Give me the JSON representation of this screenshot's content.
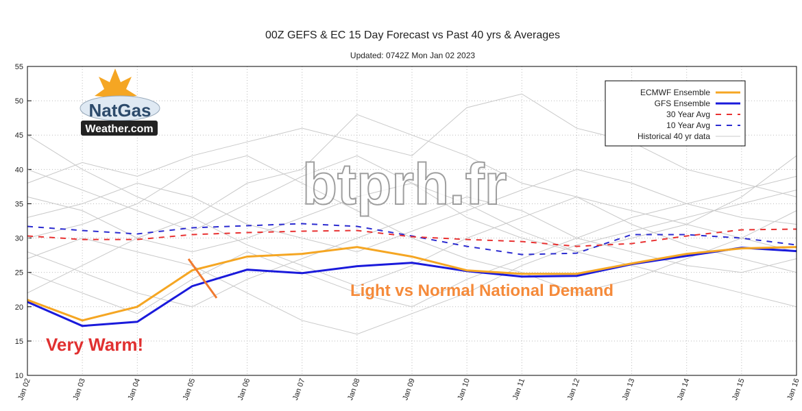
{
  "chart_data": {
    "type": "line",
    "title": "00Z GEFS & EC 15 Day Forecast vs Past 40 yrs & Averages",
    "subtitle": "Updated: 0742Z Mon Jan 02 2023",
    "categories": [
      "Jan 02",
      "Jan 03",
      "Jan 04",
      "Jan 05",
      "Jan 06",
      "Jan 07",
      "Jan 08",
      "Jan 09",
      "Jan 10",
      "Jan 11",
      "Jan 12",
      "Jan 13",
      "Jan 14",
      "Jan 15",
      "Jan 16"
    ],
    "ylim": [
      10,
      55
    ],
    "yticks": [
      10,
      15,
      20,
      25,
      30,
      35,
      40,
      45,
      50,
      55
    ],
    "grid": true,
    "series": [
      {
        "name": "ECMWF Ensemble",
        "color": "#f5a623",
        "dashed": false,
        "values": [
          21,
          18,
          20,
          25.3,
          27.3,
          27.7,
          28.7,
          27.3,
          25.3,
          24.8,
          24.8,
          26.3,
          27.7,
          28.5,
          28.7
        ]
      },
      {
        "name": "GFS Ensemble",
        "color": "#1a1adb",
        "dashed": false,
        "values": [
          20.7,
          17.2,
          17.8,
          23,
          25.4,
          24.9,
          25.9,
          26.4,
          25.2,
          24.4,
          24.5,
          26.2,
          27.4,
          28.6,
          28.1
        ]
      },
      {
        "name": "30 Year Avg",
        "color": "#e83030",
        "dashed": true,
        "values": [
          30.3,
          29.8,
          29.8,
          30.5,
          30.8,
          31,
          31.1,
          30.2,
          29.8,
          29.5,
          28.8,
          29.2,
          30.3,
          31.2,
          31.3
        ]
      },
      {
        "name": "10 Year Avg",
        "color": "#2b2bd0",
        "dashed": true,
        "values": [
          31.7,
          31.1,
          30.6,
          31.5,
          31.8,
          32.1,
          31.7,
          30.3,
          28.8,
          27.6,
          27.8,
          30.5,
          30.5,
          30,
          29
        ]
      }
    ],
    "historical": {
      "name": "Historical 40 yr data",
      "color": "#c8c8c8",
      "lines": [
        [
          38,
          41,
          39,
          42,
          44,
          46,
          44,
          42,
          49,
          51,
          46,
          44,
          40,
          38,
          36
        ],
        [
          45,
          40,
          36,
          33,
          38,
          40,
          48,
          45,
          42,
          38,
          36,
          34,
          32,
          30,
          28
        ],
        [
          28,
          25,
          22,
          20,
          24,
          27,
          30,
          33,
          36,
          34,
          30,
          28,
          26,
          25,
          27
        ],
        [
          33,
          35,
          38,
          36,
          32,
          30,
          28,
          31,
          34,
          37,
          40,
          38,
          35,
          33,
          32
        ],
        [
          25,
          22,
          19,
          24,
          28,
          25,
          22,
          20,
          24,
          27,
          30,
          33,
          35,
          37,
          39
        ],
        [
          36,
          34,
          30,
          28,
          30,
          33,
          36,
          38,
          33,
          30,
          28,
          30,
          32,
          36,
          42
        ],
        [
          30,
          32,
          35,
          40,
          42,
          38,
          34,
          30,
          27,
          25,
          22,
          24,
          27,
          30,
          34
        ],
        [
          22,
          26,
          30,
          33,
          29,
          26,
          23,
          26,
          30,
          33,
          36,
          32,
          29,
          27,
          25
        ],
        [
          40,
          37,
          34,
          31,
          35,
          39,
          42,
          38,
          35,
          31,
          28,
          26,
          24,
          22,
          20
        ],
        [
          27,
          30,
          28,
          26,
          22,
          18,
          16,
          19,
          22,
          26,
          29,
          31,
          33,
          35,
          37
        ]
      ]
    },
    "annotations": [
      "Very Warm!",
      "Light vs Normal National Demand"
    ],
    "watermark": "btprh.fr",
    "logo": [
      "NatGas",
      "Weather.com"
    ]
  }
}
